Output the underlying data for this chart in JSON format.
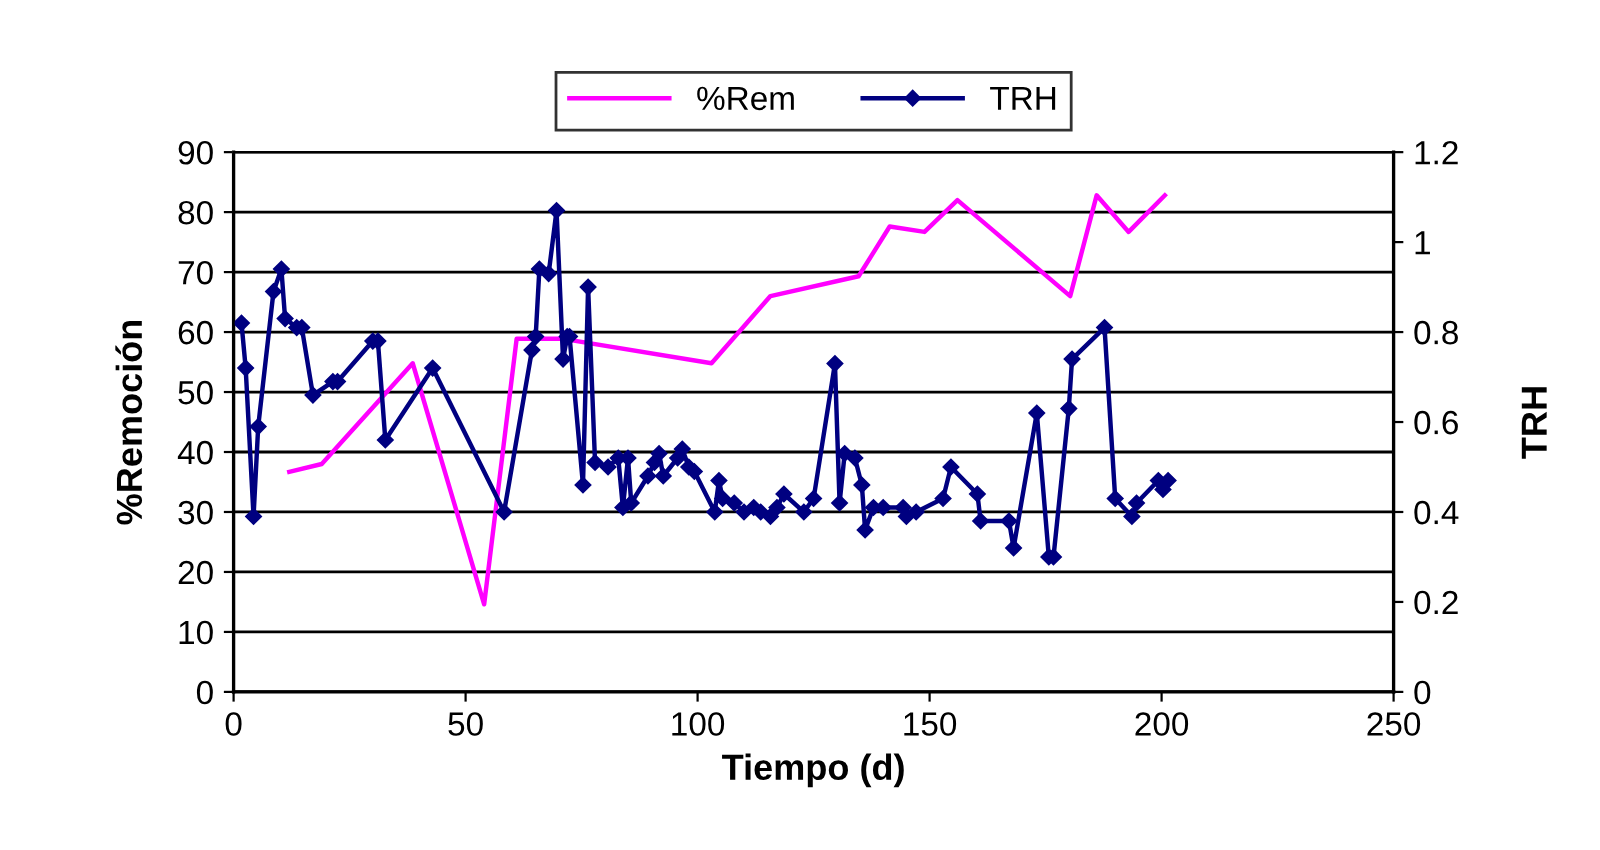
{
  "chart_data": {
    "type": "line",
    "xlabel": "Tiempo (d)",
    "ylabel": "%Remoción",
    "y2label": "TRH",
    "xlim": [
      0,
      250
    ],
    "xticks": [
      0,
      50,
      100,
      150,
      200,
      250
    ],
    "ylim": [
      0,
      90
    ],
    "yticks": [
      0,
      10,
      20,
      30,
      40,
      50,
      60,
      70,
      80,
      90
    ],
    "y2lim": [
      0,
      1.2
    ],
    "y2ticks": [
      0,
      0.2,
      0.4,
      0.6,
      0.8,
      1,
      1.2
    ],
    "grid": "y",
    "legend": "top",
    "series": [
      {
        "name": "%Rem",
        "color": "#ff00ff",
        "marker": "none",
        "x": [
          12,
          19,
          38.6,
          54,
          61,
          70.7,
          103,
          115.7,
          134.7,
          141.4,
          148.9,
          156,
          180.3,
          186,
          192.9,
          200.7
        ],
        "values": [
          36.7,
          38,
          54.8,
          14.6,
          58.9,
          58.9,
          54.8,
          66,
          69.3,
          77.6,
          76.7,
          82,
          66,
          82.8,
          76.7,
          82.8
        ]
      },
      {
        "name": "TRH",
        "color": "#000080",
        "marker": "diamond",
        "axis": "y2",
        "x": [
          1.7,
          2.6,
          4.3,
          5.3,
          8.6,
          10.3,
          11.1,
          13.6,
          14.7,
          17.1,
          21.4,
          22.4,
          30,
          31.1,
          32.7,
          42.9,
          58.3,
          64.3,
          65.1,
          65.9,
          67.9,
          69.6,
          71,
          71.9,
          72.4,
          75.3,
          76.4,
          77.9,
          80.7,
          82.9,
          83.9,
          85,
          85.7,
          89.3,
          90.7,
          91.7,
          92.6,
          95.7,
          96.7,
          98.1,
          99.3,
          103.7,
          104.6,
          105.4,
          107.9,
          110,
          112.1,
          113.6,
          115.7,
          117.1,
          118.6,
          122.9,
          125,
          129.6,
          130.6,
          131.7,
          133.9,
          135.4,
          136.1,
          137.9,
          140,
          144.3,
          145,
          147.1,
          152.9,
          154.6,
          160.3,
          161,
          167.1,
          168.1,
          173.1,
          175.7,
          176.7,
          180,
          180.7,
          187.7,
          190,
          193.6,
          194.6,
          199.3,
          200.3,
          201.4
        ],
        "values": [
          0.82,
          0.72,
          0.39,
          0.59,
          0.89,
          0.94,
          0.83,
          0.81,
          0.81,
          0.66,
          0.69,
          0.69,
          0.78,
          0.78,
          0.56,
          0.72,
          0.4,
          0.76,
          0.79,
          0.94,
          0.93,
          1.07,
          0.74,
          0.79,
          0.79,
          0.46,
          0.9,
          0.51,
          0.5,
          0.52,
          0.41,
          0.52,
          0.42,
          0.48,
          0.51,
          0.53,
          0.48,
          0.52,
          0.54,
          0.5,
          0.49,
          0.4,
          0.47,
          0.43,
          0.42,
          0.4,
          0.41,
          0.4,
          0.39,
          0.41,
          0.44,
          0.4,
          0.43,
          0.73,
          0.42,
          0.53,
          0.52,
          0.46,
          0.36,
          0.41,
          0.41,
          0.41,
          0.39,
          0.4,
          0.43,
          0.5,
          0.44,
          0.38,
          0.38,
          0.32,
          0.62,
          0.3,
          0.3,
          0.63,
          0.74,
          0.81,
          0.43,
          0.39,
          0.42,
          0.47,
          0.45,
          0.47
        ]
      }
    ]
  }
}
